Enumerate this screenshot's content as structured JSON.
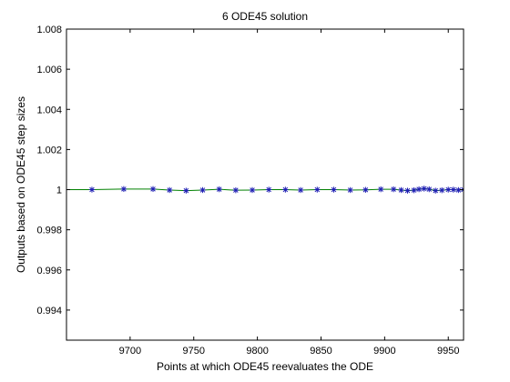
{
  "chart_data": {
    "type": "line",
    "title": "6 ODE45 solution",
    "xlabel": "Points at which ODE45 reevaluates the ODE",
    "ylabel": "Outputs based on ODE45 step sizes",
    "xlim": [
      9650,
      9962
    ],
    "ylim": [
      0.9925,
      1.008
    ],
    "xticks": [
      9700,
      9750,
      9800,
      9850,
      9900,
      9950
    ],
    "xtick_labels": [
      "9700",
      "9750",
      "9800",
      "9850",
      "9900",
      "9950"
    ],
    "yticks": [
      0.994,
      0.996,
      0.998,
      1.0,
      1.002,
      1.004,
      1.006,
      1.008
    ],
    "ytick_labels": [
      "0.994",
      "0.996",
      "0.998",
      "1",
      "1.002",
      "1.004",
      "1.006",
      "1.008"
    ],
    "grid": false,
    "legend": "none",
    "series": [
      {
        "style": "line",
        "color": "#008000",
        "x": [
          9650,
          9670,
          9695,
          9718,
          9731,
          9744,
          9757,
          9770,
          9783,
          9796,
          9809,
          9822,
          9834,
          9847,
          9860,
          9873,
          9885,
          9897,
          9907,
          9913,
          9918,
          9923,
          9927,
          9931,
          9935,
          9940,
          9945,
          9950,
          9954,
          9958,
          9962
        ],
        "y": [
          1.0,
          1.0,
          1.00003,
          1.00003,
          0.99998,
          0.99995,
          0.99998,
          1.00002,
          0.99997,
          0.99998,
          1.0,
          1.0,
          0.99998,
          1.0,
          1.0,
          0.99998,
          0.99999,
          1.00002,
          1.00002,
          0.99998,
          0.99995,
          0.99997,
          1.00002,
          1.00005,
          1.00002,
          0.99995,
          0.99997,
          1.0,
          1.0,
          0.99998,
          1.0
        ]
      },
      {
        "style": "markers",
        "marker": "asterisk",
        "color": "#1f1fb4",
        "x": [
          9670,
          9695,
          9718,
          9731,
          9744,
          9757,
          9770,
          9783,
          9796,
          9809,
          9822,
          9834,
          9847,
          9860,
          9873,
          9885,
          9897,
          9907,
          9913,
          9918,
          9923,
          9927,
          9931,
          9935,
          9940,
          9945,
          9950,
          9954,
          9958,
          9962
        ],
        "y": [
          1.0,
          1.00003,
          1.00003,
          0.99998,
          0.99995,
          0.99998,
          1.00002,
          0.99997,
          0.99998,
          1.0,
          1.0,
          0.99998,
          1.0,
          1.0,
          0.99998,
          0.99999,
          1.00002,
          1.00002,
          0.99998,
          0.99995,
          0.99997,
          1.00002,
          1.00005,
          1.00002,
          0.99995,
          0.99997,
          1.0,
          1.0,
          0.99998,
          1.0
        ]
      }
    ]
  }
}
